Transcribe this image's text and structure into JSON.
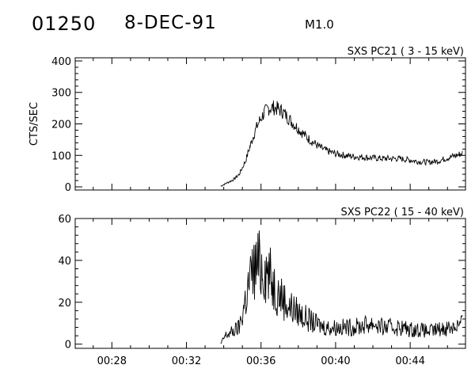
{
  "header": {
    "event_id": "01250",
    "date": "8-DEC-91",
    "flare_class": "M1.0"
  },
  "chart_data": [
    {
      "type": "line",
      "title": "SXS PC21  (  3 - 15 keV)",
      "xlabel": "",
      "ylabel": "CTS/SEC",
      "xlim": [
        "00:26:02",
        "00:46:58"
      ],
      "ylim": [
        -10,
        410
      ],
      "yticks": [
        0,
        100,
        200,
        300,
        400
      ],
      "xticks": [
        "00:28",
        "00:32",
        "00:36",
        "00:40",
        "00:44"
      ],
      "show_xtick_labels": false,
      "series": [
        {
          "x": [
            "00:33:50",
            "00:34:05",
            "00:34:30",
            "00:34:50",
            "00:35:10",
            "00:35:25",
            "00:35:40",
            "00:35:55",
            "00:36:10",
            "00:36:25",
            "00:36:40",
            "00:36:55",
            "00:37:10",
            "00:37:25",
            "00:37:40",
            "00:37:55",
            "00:38:10",
            "00:38:30",
            "00:38:50",
            "00:39:10",
            "00:39:30",
            "00:40:00",
            "00:40:30",
            "00:41:00",
            "00:41:30",
            "00:42:00",
            "00:42:30",
            "00:43:00",
            "00:43:30",
            "00:44:00",
            "00:44:30",
            "00:45:00",
            "00:45:30",
            "00:46:00",
            "00:46:30",
            "00:46:50"
          ],
          "values": [
            2,
            10,
            22,
            40,
            82,
            130,
            175,
            210,
            235,
            250,
            252,
            248,
            238,
            222,
            205,
            190,
            175,
            155,
            140,
            125,
            115,
            105,
            100,
            96,
            94,
            92,
            90,
            90,
            89,
            85,
            80,
            78,
            82,
            92,
            100,
            108
          ]
        }
      ]
    },
    {
      "type": "line",
      "title": "SXS PC22  ( 15 - 40 keV)",
      "xlabel": "",
      "ylabel": "",
      "xlim": [
        "00:26:02",
        "00:46:58"
      ],
      "ylim": [
        -2,
        60
      ],
      "yticks": [
        0,
        20,
        40,
        60
      ],
      "xticks": [
        "00:28",
        "00:32",
        "00:36",
        "00:40",
        "00:44"
      ],
      "show_xtick_labels": true,
      "series": [
        {
          "x": [
            "00:33:50",
            "00:34:05",
            "00:34:30",
            "00:34:50",
            "00:35:05",
            "00:35:20",
            "00:35:35",
            "00:35:50",
            "00:36:05",
            "00:36:20",
            "00:36:35",
            "00:36:50",
            "00:37:10",
            "00:37:30",
            "00:37:50",
            "00:38:10",
            "00:38:30",
            "00:38:50",
            "00:39:10",
            "00:39:30",
            "00:40:00",
            "00:40:30",
            "00:41:00",
            "00:41:30",
            "00:42:00",
            "00:42:30",
            "00:43:00",
            "00:43:30",
            "00:44:00",
            "00:44:30",
            "00:45:00",
            "00:45:30",
            "00:46:00",
            "00:46:30",
            "00:46:50"
          ],
          "values": [
            0,
            4,
            6,
            8,
            18,
            28,
            35,
            38,
            37,
            35,
            30,
            26,
            22,
            18,
            16,
            14,
            12,
            10,
            9,
            8,
            8,
            8,
            8,
            9,
            10,
            8,
            8,
            8,
            7,
            7,
            6,
            7,
            8,
            9,
            10
          ]
        }
      ]
    }
  ]
}
